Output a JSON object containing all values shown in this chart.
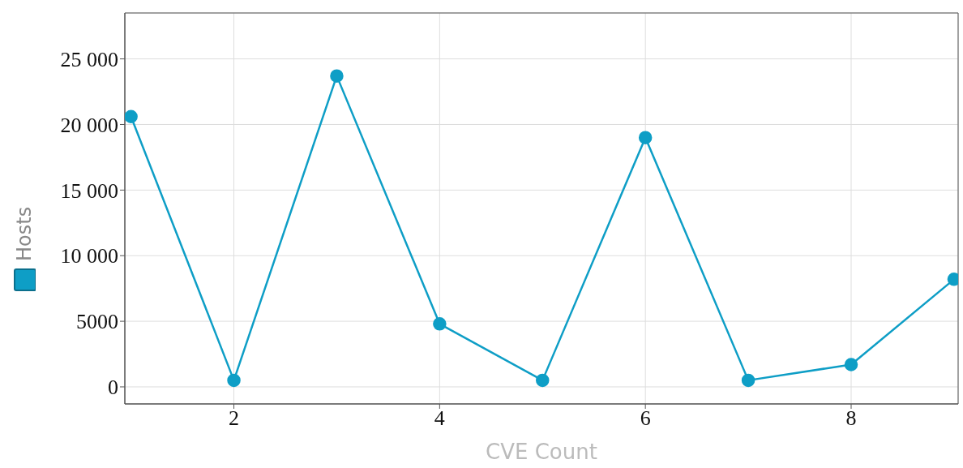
{
  "chart_data": {
    "type": "line",
    "xlabel": "CVE Count",
    "x": [
      1,
      2,
      3,
      4,
      5,
      6,
      7,
      8,
      9
    ],
    "series": [
      {
        "name": "Hosts",
        "color": "#0e9ec6",
        "values": [
          20600,
          500,
          23700,
          4800,
          500,
          19000,
          500,
          1700,
          8200
        ]
      }
    ],
    "xlim": [
      0.94,
      9.04
    ],
    "xticks": [
      2,
      4,
      6,
      8
    ],
    "ylim": [
      -1300,
      28500
    ],
    "yticks": [
      {
        "value": 0,
        "label": "0"
      },
      {
        "value": 5000,
        "label": "5000"
      },
      {
        "value": 10000,
        "label": "10 000"
      },
      {
        "value": 15000,
        "label": "15 000"
      },
      {
        "value": 20000,
        "label": "20 000"
      },
      {
        "value": 25000,
        "label": "25 000"
      }
    ],
    "grid": true,
    "legend": "left",
    "marker": "circle",
    "line_style": "solid"
  }
}
